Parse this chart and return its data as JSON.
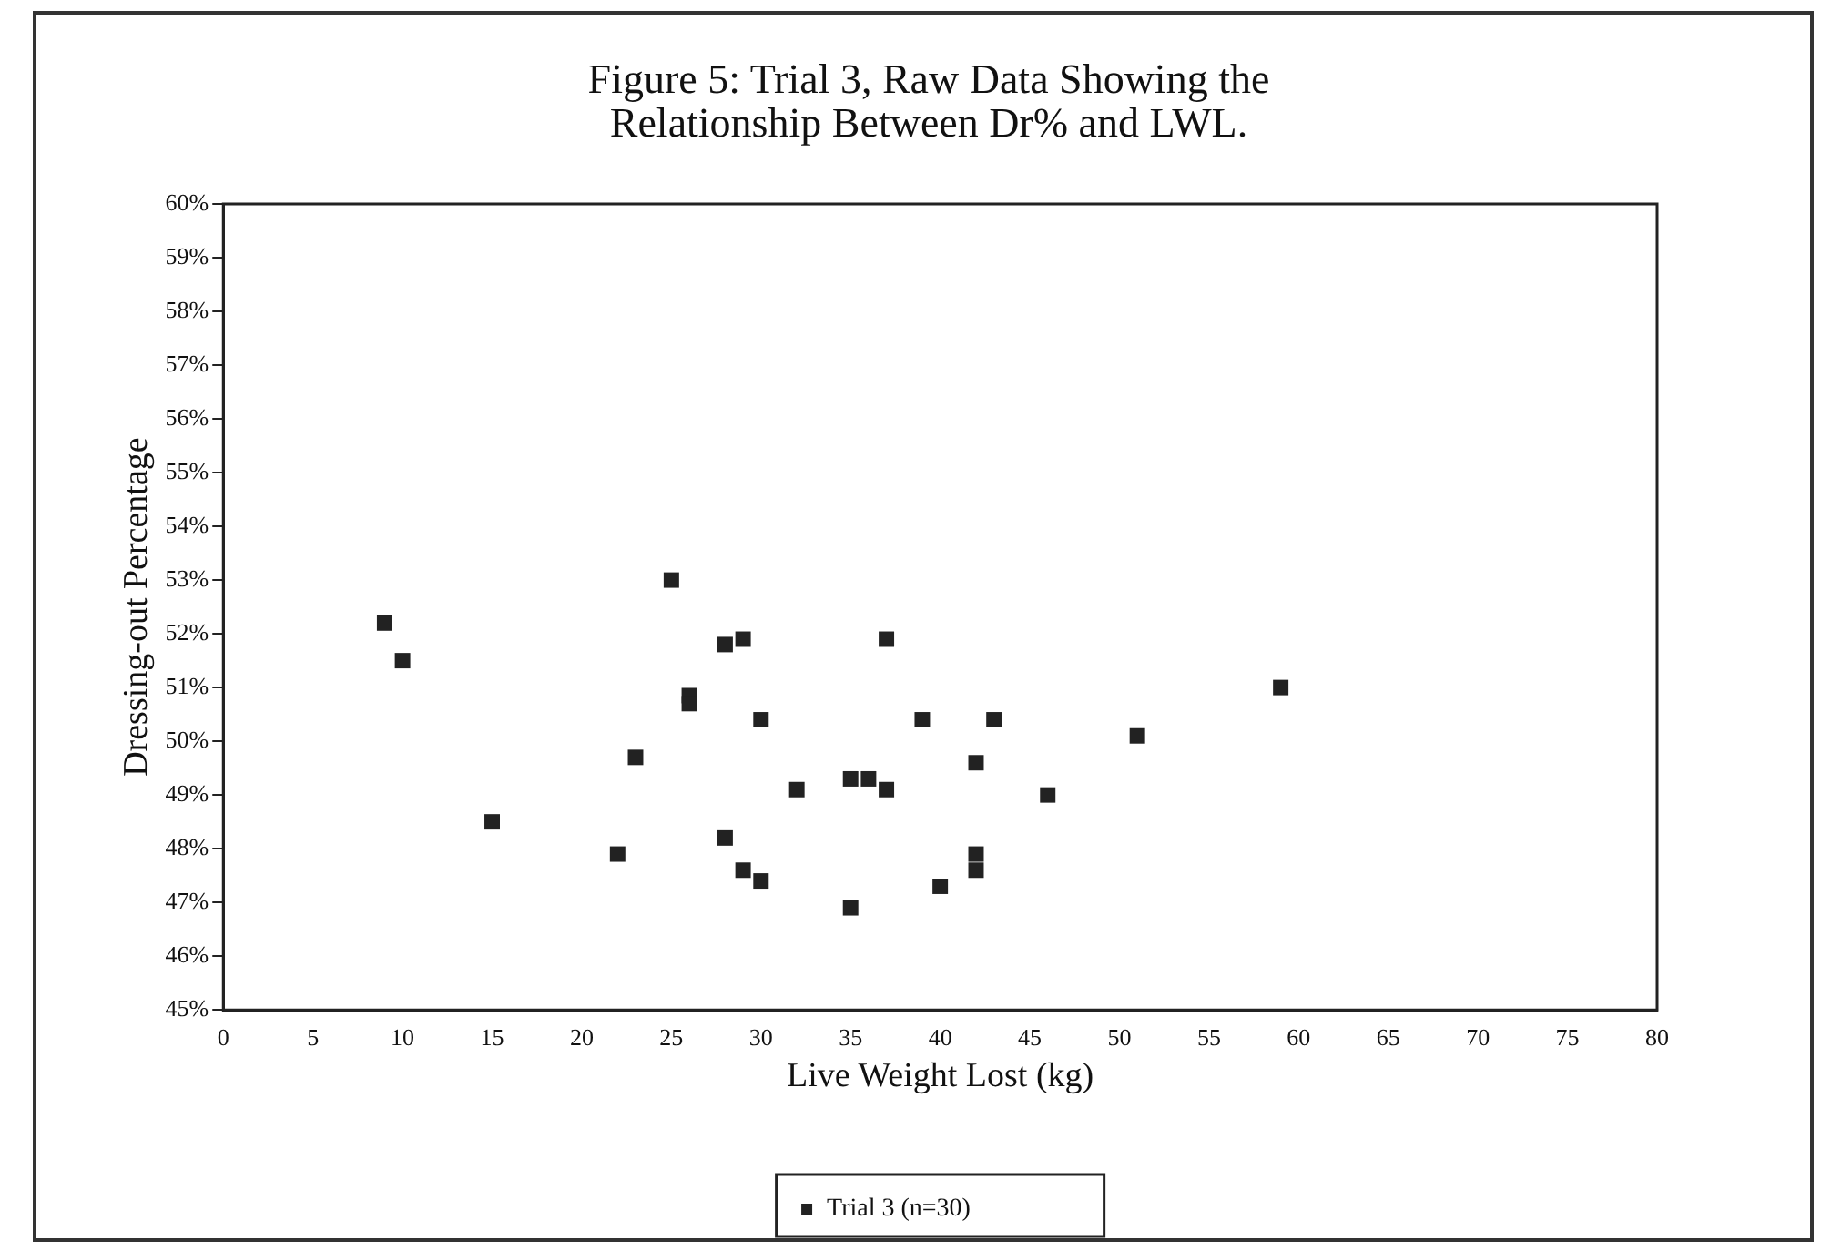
{
  "chart_data": {
    "type": "scatter",
    "title": "Figure 5: Trial 3, Raw Data Showing the Relationship Between Dr% and LWL.",
    "xlabel": "Live Weight Lost (kg)",
    "ylabel": "Dressing-out Percentage",
    "xlim": [
      0,
      80
    ],
    "xticks": [
      0,
      5,
      10,
      15,
      20,
      25,
      30,
      35,
      40,
      45,
      50,
      55,
      60,
      65,
      70,
      75,
      80
    ],
    "ylim": [
      45,
      60
    ],
    "yticks": [
      {
        "value": 45,
        "label": "45%"
      },
      {
        "value": 46,
        "label": "46%"
      },
      {
        "value": 47,
        "label": "47%"
      },
      {
        "value": 48,
        "label": "48%"
      },
      {
        "value": 49,
        "label": "49%"
      },
      {
        "value": 50,
        "label": "50%"
      },
      {
        "value": 51,
        "label": "51%"
      },
      {
        "value": 52,
        "label": "52%"
      },
      {
        "value": 53,
        "label": "53%"
      },
      {
        "value": 54,
        "label": "54%"
      },
      {
        "value": 55,
        "label": "55%"
      },
      {
        "value": 56,
        "label": "56%"
      },
      {
        "value": 57,
        "label": "57%"
      },
      {
        "value": 58,
        "label": "58%"
      },
      {
        "value": 59,
        "label": "59%"
      },
      {
        "value": 60,
        "label": "60%"
      }
    ],
    "grid": false,
    "legend": "bottom",
    "marker": "square",
    "series": [
      {
        "name": "Trial 3 (n=30)",
        "color": "#222222",
        "x": [
          9,
          10,
          15,
          22,
          23,
          25,
          26,
          26,
          28,
          28,
          29,
          29,
          30,
          30,
          32,
          35,
          36,
          37,
          37,
          35,
          39,
          40,
          42,
          42,
          42,
          43,
          46,
          51,
          59
        ],
        "values": [
          52.2,
          51.5,
          48.5,
          47.9,
          49.7,
          53.0,
          50.85,
          50.7,
          51.8,
          48.2,
          51.9,
          47.6,
          50.4,
          47.4,
          49.1,
          49.3,
          49.3,
          49.1,
          51.9,
          46.9,
          50.4,
          47.3,
          49.6,
          47.9,
          47.6,
          50.4,
          49.0,
          50.1,
          51.0
        ]
      }
    ]
  }
}
